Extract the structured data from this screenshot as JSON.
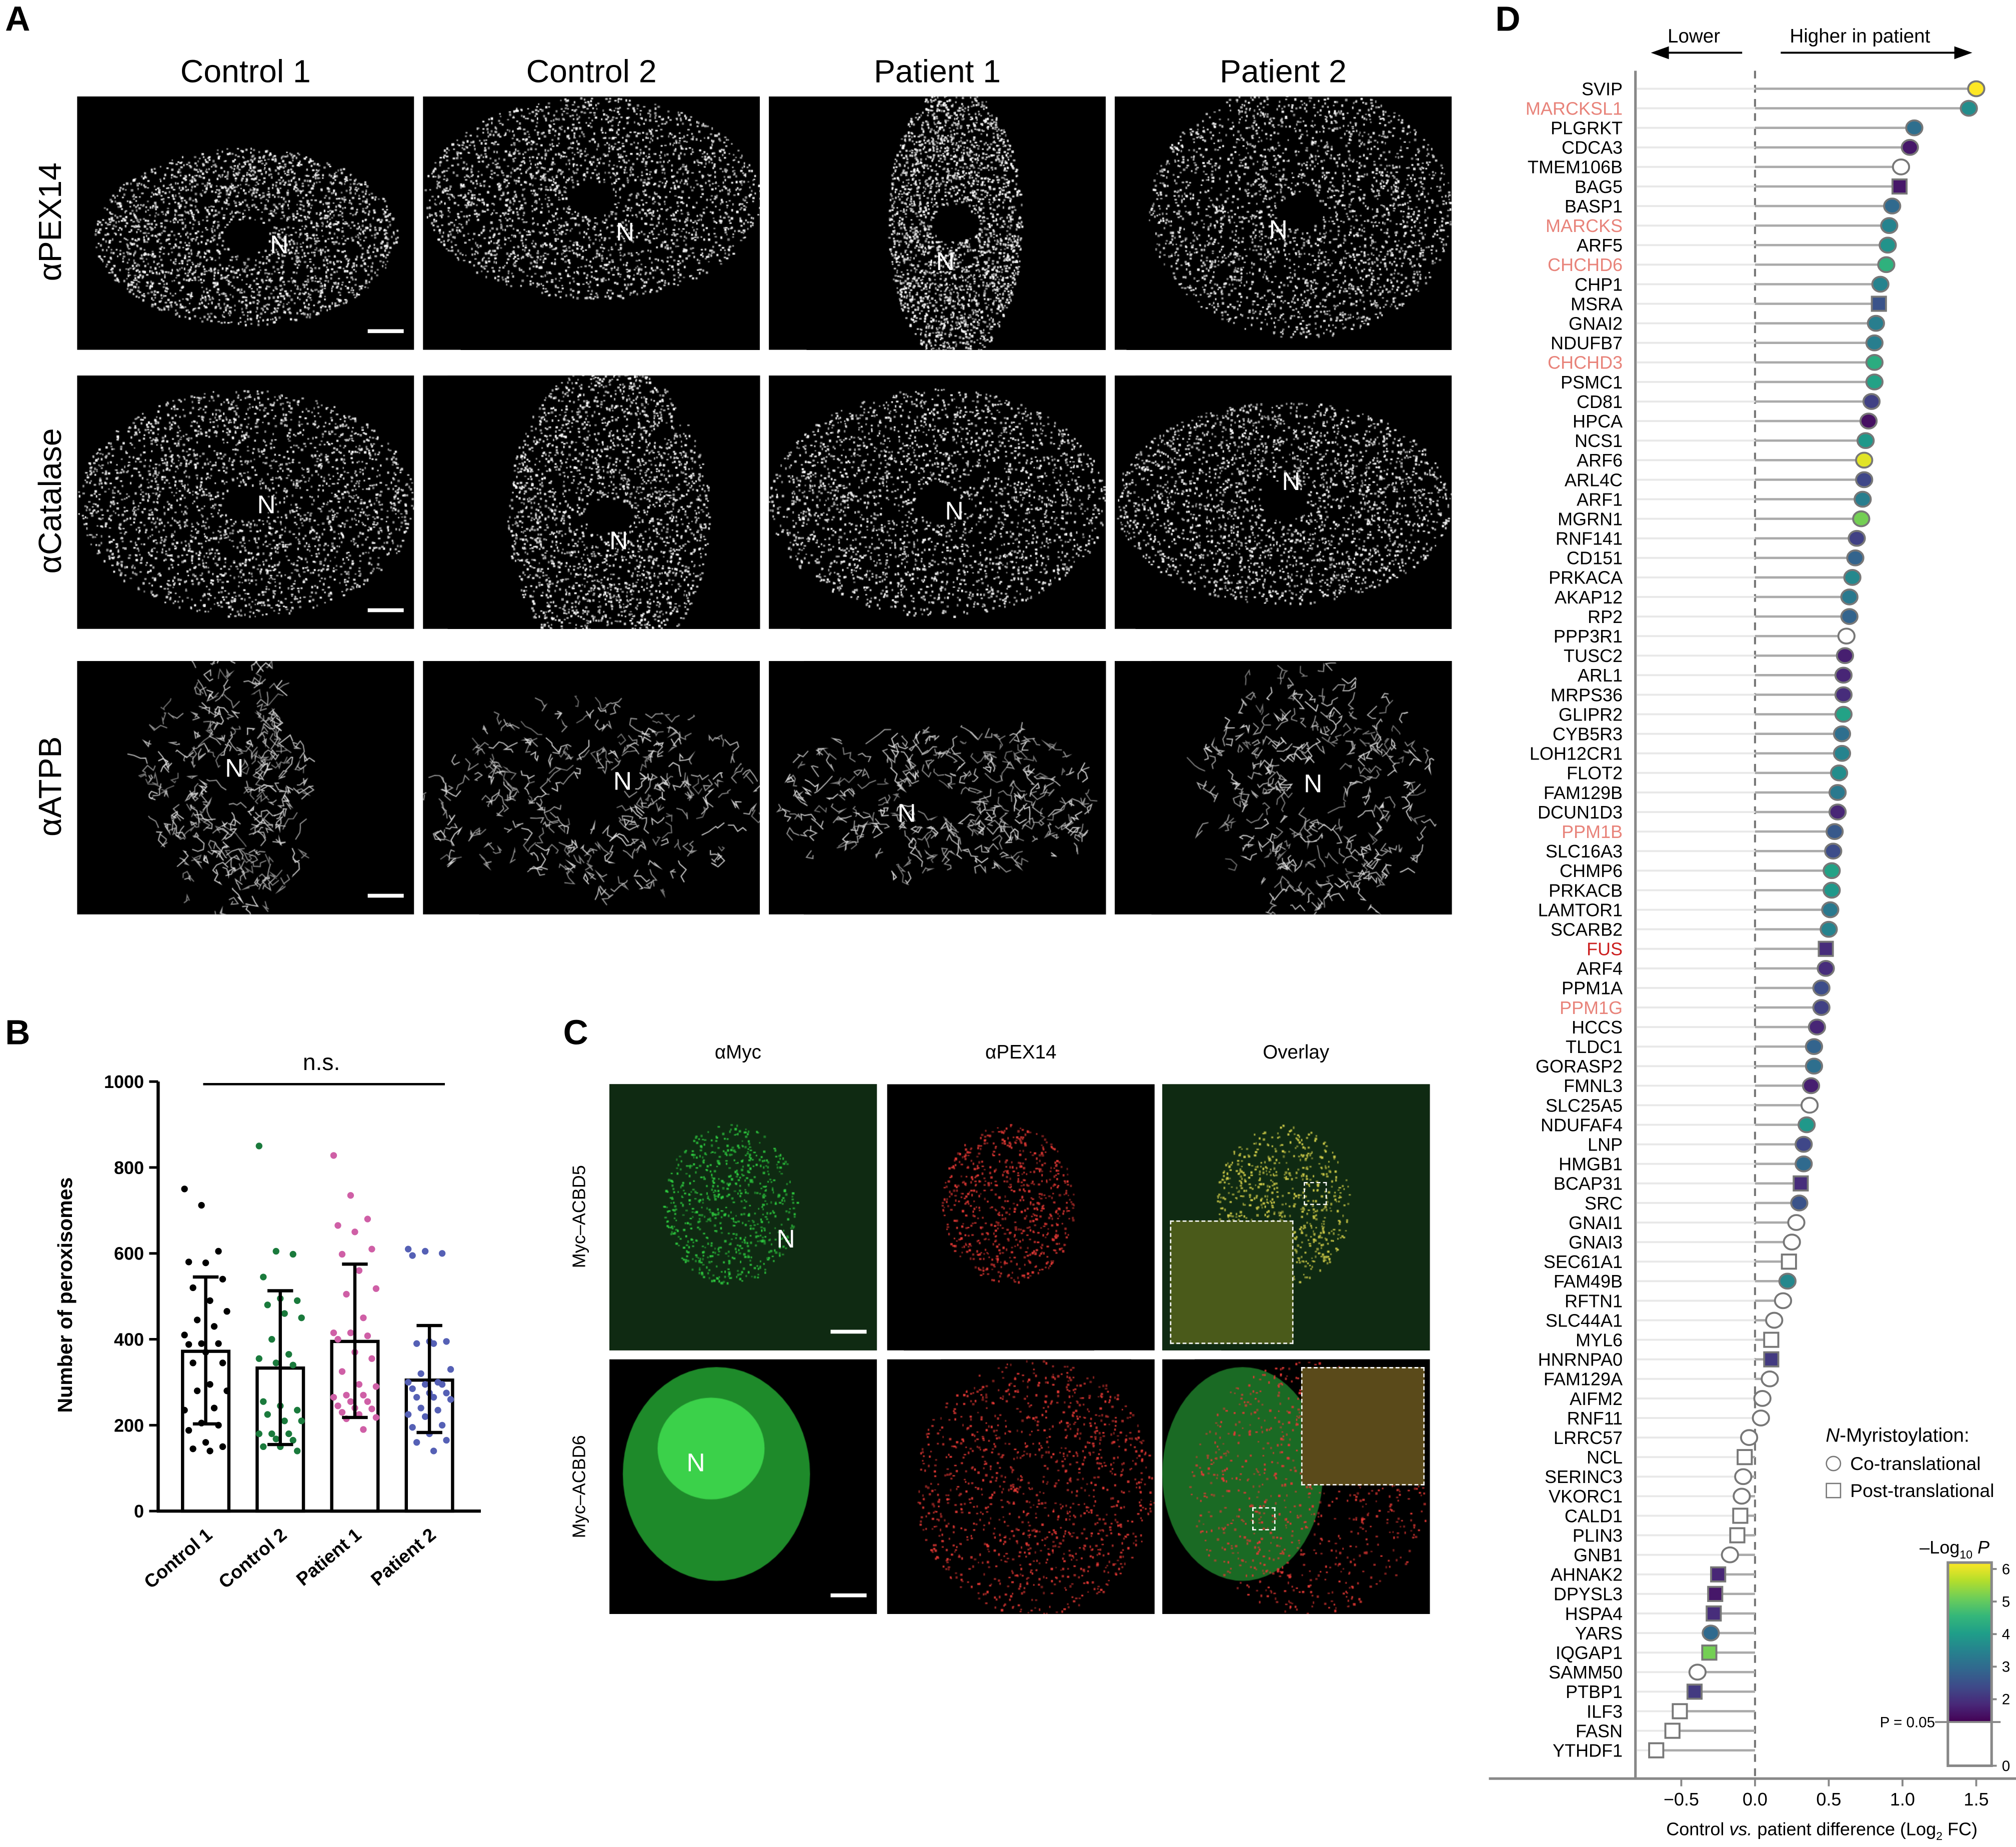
{
  "panel_a": {
    "label": "A",
    "columns": [
      "Control 1",
      "Control 2",
      "Patient 1",
      "Patient 2"
    ],
    "rows": [
      "αPEX14",
      "αCatalase",
      "αATPB"
    ],
    "nucleus_label": "N"
  },
  "panel_b": {
    "label": "B",
    "significance": "n.s."
  },
  "panel_c": {
    "label": "C",
    "columns": [
      "αMyc",
      "αPEX14",
      "Overlay"
    ],
    "rows": [
      "Myc–ACBD5",
      "Myc–ACBD6"
    ],
    "nucleus_label": "N"
  },
  "panel_d": {
    "label": "D",
    "arrow_lower": "Lower",
    "arrow_higher": "Higher in patient",
    "legend_title": "N-Myristoylation:",
    "legend_items": [
      "Co-translational",
      "Post-translational"
    ],
    "colorbar_title": "–Log10 P",
    "colorbar_ticks": [
      "6",
      "5",
      "4",
      "3",
      "2",
      "0"
    ],
    "colorbar_threshold": "P = 0.05",
    "highlight_colors": {
      "salmon": "#e8837a",
      "red": "#cc1f1f"
    }
  },
  "chart_data": [
    {
      "type": "bar",
      "title": "",
      "ylabel": "Number of peroxisomes",
      "xlabel": "",
      "ylim": [
        0,
        1000
      ],
      "yticks": [
        "0",
        "200",
        "400",
        "600",
        "800",
        "1000"
      ],
      "categories": [
        "Control 1",
        "Control 2",
        "Patient 1",
        "Patient 2"
      ],
      "means": [
        372,
        333,
        395,
        305
      ],
      "sd_upper": [
        545,
        513,
        575,
        432
      ],
      "sd_lower": [
        203,
        155,
        218,
        183
      ],
      "colors": [
        "#000000",
        "#1a7a3c",
        "#cf5fa6",
        "#5560b5"
      ],
      "points": [
        [
          750,
          712,
          605,
          580,
          578,
          540,
          520,
          490,
          465,
          445,
          430,
          410,
          390,
          390,
          388,
          370,
          345,
          345,
          295,
          280,
          280,
          240,
          235,
          205,
          200,
          188,
          160,
          150,
          145,
          140
        ],
        [
          850,
          605,
          598,
          545,
          495,
          490,
          480,
          460,
          450,
          400,
          365,
          355,
          345,
          340,
          255,
          245,
          235,
          225,
          210,
          210,
          180,
          180,
          180,
          168,
          165,
          150,
          150,
          140
        ],
        [
          828,
          735,
          680,
          665,
          650,
          610,
          598,
          560,
          518,
          505,
          450,
          415,
          415,
          408,
          400,
          370,
          355,
          325,
          295,
          290,
          270,
          270,
          265,
          255,
          255,
          245,
          240,
          238,
          230,
          225,
          218,
          215,
          190
        ],
        [
          610,
          605,
          600,
          595,
          395,
          395,
          390,
          390,
          330,
          320,
          300,
          300,
          295,
          295,
          285,
          275,
          275,
          265,
          265,
          260,
          240,
          235,
          225,
          220,
          200,
          195,
          180,
          165,
          160,
          140
        ]
      ]
    },
    {
      "type": "lollipop",
      "xlabel": "Control vs. patient difference (Log2 FC)",
      "xlim": [
        -0.8,
        1.6
      ],
      "xticks": [
        "−0.5",
        "0.0",
        "0.5",
        "1.0",
        "1.5"
      ],
      "xtick_values": [
        -0.5,
        0,
        0.5,
        1.0,
        1.5
      ],
      "color_scale": "viridis",
      "color_range": [
        1.3,
        6
      ],
      "fields": [
        "gene",
        "log2fc",
        "neg_log10_p",
        "shape"
      ],
      "genes": [
        [
          "SVIP",
          1.5,
          6,
          "c"
        ],
        [
          "MARCKSL1",
          1.45,
          3.6,
          "c"
        ],
        [
          "PLGRKT",
          1.08,
          3.0,
          "c"
        ],
        [
          "CDCA3",
          1.05,
          1.6,
          "c"
        ],
        [
          "TMEM106B",
          0.99,
          0,
          "c"
        ],
        [
          "BAG5",
          0.98,
          1.6,
          "s"
        ],
        [
          "BASP1",
          0.93,
          2.9,
          "c"
        ],
        [
          "MARCKS",
          0.91,
          3.4,
          "c"
        ],
        [
          "ARF5",
          0.9,
          3.7,
          "c"
        ],
        [
          "CHCHD6",
          0.89,
          4.3,
          "c"
        ],
        [
          "CHP1",
          0.85,
          3.4,
          "c"
        ],
        [
          "MSRA",
          0.84,
          2.5,
          "s"
        ],
        [
          "GNAI2",
          0.82,
          3.3,
          "c"
        ],
        [
          "NDUFB7",
          0.81,
          3.3,
          "c"
        ],
        [
          "CHCHD3",
          0.81,
          4.2,
          "c"
        ],
        [
          "PSMC1",
          0.81,
          4.0,
          "c"
        ],
        [
          "CD81",
          0.79,
          2.2,
          "c"
        ],
        [
          "HPCA",
          0.77,
          1.5,
          "c"
        ],
        [
          "NCS1",
          0.75,
          3.8,
          "c"
        ],
        [
          "ARF6",
          0.74,
          5.8,
          "c"
        ],
        [
          "ARL4C",
          0.74,
          2.3,
          "c"
        ],
        [
          "ARF1",
          0.73,
          3.3,
          "c"
        ],
        [
          "MGRN1",
          0.72,
          5.0,
          "c"
        ],
        [
          "RNF141",
          0.69,
          2.2,
          "c"
        ],
        [
          "CD151",
          0.68,
          2.8,
          "c"
        ],
        [
          "PRKACA",
          0.66,
          3.5,
          "c"
        ],
        [
          "AKAP12",
          0.64,
          3.2,
          "c"
        ],
        [
          "RP2",
          0.64,
          2.8,
          "c"
        ],
        [
          "PPP3R1",
          0.62,
          0,
          "c"
        ],
        [
          "TUSC2",
          0.61,
          1.7,
          "c"
        ],
        [
          "ARL1",
          0.6,
          1.8,
          "c"
        ],
        [
          "MRPS36",
          0.6,
          1.9,
          "c"
        ],
        [
          "GLIPR2",
          0.6,
          4.0,
          "c"
        ],
        [
          "CYB5R3",
          0.59,
          3.0,
          "c"
        ],
        [
          "LOH12CR1",
          0.59,
          3.4,
          "c"
        ],
        [
          "FLOT2",
          0.57,
          3.6,
          "c"
        ],
        [
          "FAM129B",
          0.56,
          3.2,
          "c"
        ],
        [
          "DCUN1D3",
          0.56,
          1.8,
          "c"
        ],
        [
          "PPM1B",
          0.54,
          2.6,
          "c"
        ],
        [
          "SLC16A3",
          0.53,
          2.4,
          "c"
        ],
        [
          "CHMP6",
          0.52,
          4.0,
          "c"
        ],
        [
          "PRKACB",
          0.52,
          3.8,
          "c"
        ],
        [
          "LAMTOR1",
          0.51,
          3.2,
          "c"
        ],
        [
          "SCARB2",
          0.5,
          3.4,
          "c"
        ],
        [
          "FUS",
          0.48,
          1.9,
          "s"
        ],
        [
          "ARF4",
          0.48,
          1.9,
          "c"
        ],
        [
          "PPM1A",
          0.45,
          2.4,
          "c"
        ],
        [
          "PPM1G",
          0.45,
          2.2,
          "c"
        ],
        [
          "HCCS",
          0.42,
          1.8,
          "c"
        ],
        [
          "TLDC1",
          0.4,
          2.8,
          "c"
        ],
        [
          "GORASP2",
          0.4,
          3.0,
          "c"
        ],
        [
          "FMNL3",
          0.38,
          1.7,
          "c"
        ],
        [
          "SLC25A5",
          0.37,
          0,
          "c"
        ],
        [
          "NDUFAF4",
          0.35,
          3.8,
          "c"
        ],
        [
          "LNP",
          0.33,
          2.3,
          "c"
        ],
        [
          "HMGB1",
          0.33,
          2.9,
          "c"
        ],
        [
          "BCAP31",
          0.31,
          1.9,
          "s"
        ],
        [
          "SRC",
          0.3,
          2.5,
          "c"
        ],
        [
          "GNAI1",
          0.28,
          0,
          "c"
        ],
        [
          "GNAI3",
          0.25,
          0,
          "c"
        ],
        [
          "SEC61A1",
          0.23,
          0,
          "s"
        ],
        [
          "FAM49B",
          0.22,
          3.5,
          "c"
        ],
        [
          "RFTN1",
          0.19,
          0,
          "c"
        ],
        [
          "SLC44A1",
          0.13,
          0,
          "c"
        ],
        [
          "MYL6",
          0.11,
          0,
          "s"
        ],
        [
          "HNRNPA0",
          0.11,
          2.1,
          "s"
        ],
        [
          "FAM129A",
          0.1,
          0,
          "c"
        ],
        [
          "AIFM2",
          0.05,
          0,
          "c"
        ],
        [
          "RNF11",
          0.04,
          0,
          "c"
        ],
        [
          "LRRC57",
          -0.04,
          0,
          "c"
        ],
        [
          "NCL",
          -0.07,
          0,
          "s"
        ],
        [
          "SERINC3",
          -0.08,
          0,
          "c"
        ],
        [
          "VKORC1",
          -0.09,
          0,
          "c"
        ],
        [
          "CALD1",
          -0.1,
          0,
          "s"
        ],
        [
          "PLIN3",
          -0.12,
          0,
          "s"
        ],
        [
          "GNB1",
          -0.17,
          0,
          "c"
        ],
        [
          "AHNAK2",
          -0.25,
          1.8,
          "s"
        ],
        [
          "DPYSL3",
          -0.27,
          1.6,
          "s"
        ],
        [
          "HSPA4",
          -0.28,
          1.9,
          "s"
        ],
        [
          "YARS",
          -0.3,
          2.9,
          "c"
        ],
        [
          "IQGAP1",
          -0.31,
          5.0,
          "s"
        ],
        [
          "SAMM50",
          -0.39,
          0,
          "c"
        ],
        [
          "PTBP1",
          -0.41,
          2.1,
          "s"
        ],
        [
          "ILF3",
          -0.51,
          0,
          "s"
        ],
        [
          "FASN",
          -0.56,
          0,
          "s"
        ],
        [
          "YTHDF1",
          -0.67,
          0,
          "s"
        ]
      ],
      "highlight_salmon": [
        "MARCKSL1",
        "MARCKS",
        "CHCHD6",
        "CHCHD3",
        "PPM1B",
        "PPM1G"
      ],
      "highlight_red": [
        "FUS"
      ]
    }
  ]
}
